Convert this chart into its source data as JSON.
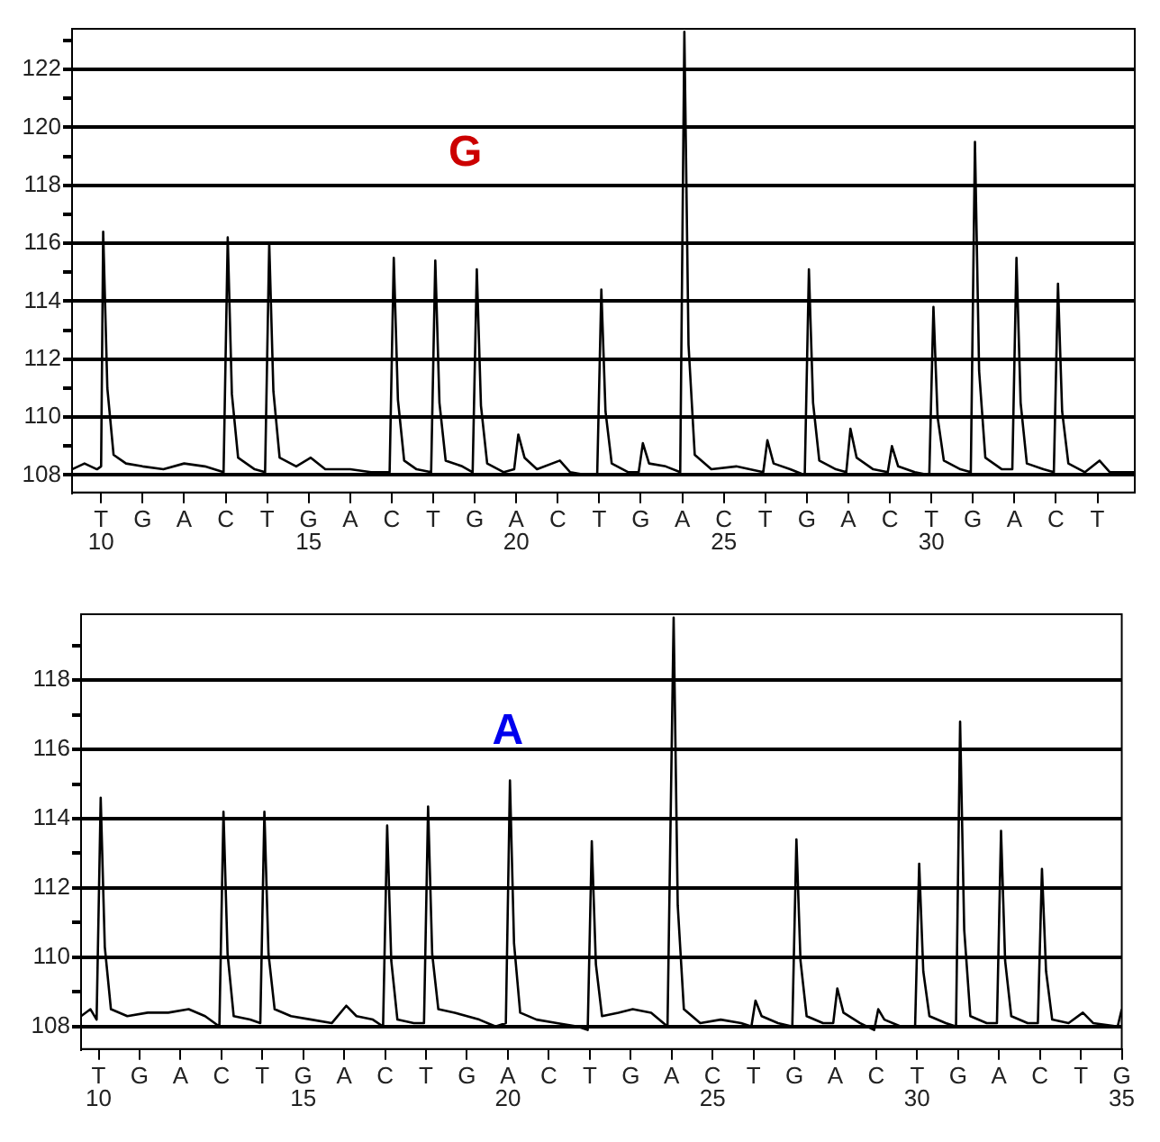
{
  "chart_data": [
    {
      "type": "line",
      "grid": "y",
      "marker": "none",
      "annotations": [
        "G",
        "T",
        "G",
        "A",
        "C",
        "T",
        "G",
        "A",
        "C",
        "T",
        "G",
        "A",
        "C",
        "T",
        "G",
        "A",
        "C",
        "T",
        "G",
        "A",
        "C",
        "T",
        "G",
        "A",
        "C",
        "T"
      ],
      "xlim": [
        9.3,
        34.9
      ],
      "xticks": [
        10,
        {
          "value": 11,
          "label": null
        },
        {
          "value": 12,
          "label": null
        },
        {
          "value": 13,
          "label": null
        },
        {
          "value": 14,
          "label": null
        },
        15,
        {
          "value": 16,
          "label": null
        },
        {
          "value": 17,
          "label": null
        },
        {
          "value": 18,
          "label": null
        },
        {
          "value": 19,
          "label": null
        },
        20,
        {
          "value": 21,
          "label": null
        },
        {
          "value": 22,
          "label": null
        },
        {
          "value": 23,
          "label": null
        },
        {
          "value": 24,
          "label": null
        },
        25,
        {
          "value": 26,
          "label": null
        },
        {
          "value": 27,
          "label": null
        },
        {
          "value": 28,
          "label": null
        },
        {
          "value": 29,
          "label": null
        },
        30,
        {
          "value": 31,
          "label": null
        },
        {
          "value": 32,
          "label": null
        },
        {
          "value": 33,
          "label": null
        },
        {
          "value": 34,
          "label": null
        }
      ],
      "ylim": [
        107.4,
        123.4
      ],
      "yticks": [
        108,
        {
          "value": 109,
          "label": null
        },
        110,
        {
          "value": 111,
          "label": null
        },
        112,
        {
          "value": 113,
          "label": null
        },
        114,
        {
          "value": 115,
          "label": null
        },
        116,
        {
          "value": 117,
          "label": null
        },
        118,
        {
          "value": 119,
          "label": null
        },
        120,
        {
          "value": 121,
          "label": null
        },
        122,
        {
          "value": 123,
          "label": null
        }
      ],
      "series": [
        {
          "color": "#000000",
          "x": [
            9.3,
            9.6,
            9.9,
            10.0,
            10.05,
            10.15,
            10.3,
            10.6,
            11.0,
            11.5,
            12.0,
            12.5,
            12.95,
            13.05,
            13.15,
            13.3,
            13.7,
            13.95,
            14.05,
            14.15,
            14.3,
            14.7,
            15.05,
            15.4,
            16.0,
            16.5,
            16.95,
            17.05,
            17.15,
            17.3,
            17.6,
            17.95,
            18.05,
            18.15,
            18.3,
            18.7,
            18.95,
            19.05,
            19.15,
            19.3,
            19.7,
            19.95,
            20.05,
            20.2,
            20.5,
            21.05,
            21.3,
            21.7,
            21.95,
            22.05,
            22.15,
            22.3,
            22.7,
            22.95,
            23.05,
            23.2,
            23.6,
            23.95,
            24.05,
            24.15,
            24.3,
            24.7,
            25.3,
            25.95,
            26.05,
            26.2,
            26.6,
            26.95,
            27.05,
            27.15,
            27.3,
            27.7,
            27.95,
            28.05,
            28.2,
            28.6,
            28.95,
            29.05,
            29.2,
            29.6,
            29.95,
            30.05,
            30.15,
            30.3,
            30.7,
            30.95,
            31.05,
            31.15,
            31.3,
            31.7,
            31.95,
            32.05,
            32.15,
            32.3,
            32.7,
            32.95,
            33.05,
            33.15,
            33.3,
            33.7,
            34.05,
            34.3,
            34.9
          ],
          "values": [
            108.2,
            108.4,
            108.2,
            108.3,
            116.4,
            111.0,
            108.7,
            108.4,
            108.3,
            108.2,
            108.4,
            108.3,
            108.1,
            116.2,
            110.8,
            108.6,
            108.2,
            108.1,
            116.0,
            110.9,
            108.6,
            108.3,
            108.6,
            108.2,
            108.2,
            108.1,
            108.1,
            115.5,
            110.6,
            108.5,
            108.2,
            108.1,
            115.4,
            110.5,
            108.5,
            108.3,
            108.1,
            115.1,
            110.4,
            108.4,
            108.1,
            108.2,
            109.4,
            108.6,
            108.2,
            108.5,
            108.1,
            108.0,
            108.0,
            114.4,
            110.2,
            108.4,
            108.1,
            108.1,
            109.1,
            108.4,
            108.3,
            108.1,
            123.3,
            112.5,
            108.7,
            108.2,
            108.3,
            108.1,
            109.2,
            108.4,
            108.2,
            108.0,
            115.1,
            110.5,
            108.5,
            108.2,
            108.1,
            109.6,
            108.6,
            108.2,
            108.1,
            109.0,
            108.3,
            108.1,
            108.0,
            113.8,
            110.0,
            108.5,
            108.2,
            108.1,
            119.5,
            111.6,
            108.6,
            108.2,
            108.2,
            115.5,
            110.5,
            108.4,
            108.2,
            108.1,
            114.6,
            110.2,
            108.4,
            108.1,
            108.5,
            108.1,
            108.1
          ]
        }
      ]
    },
    {
      "type": "line",
      "grid": "y",
      "marker": "none",
      "annotations": [
        "A",
        "T",
        "G",
        "A",
        "C",
        "T",
        "G",
        "A",
        "C",
        "T",
        "G",
        "A",
        "C",
        "T",
        "G",
        "A",
        "C",
        "T",
        "G",
        "A",
        "C",
        "T",
        "G",
        "A",
        "C",
        "T",
        "G"
      ],
      "xlim": [
        9.57,
        35
      ],
      "xticks": [
        10,
        {
          "value": 11,
          "label": null
        },
        {
          "value": 12,
          "label": null
        },
        {
          "value": 13,
          "label": null
        },
        {
          "value": 14,
          "label": null
        },
        15,
        {
          "value": 16,
          "label": null
        },
        {
          "value": 17,
          "label": null
        },
        {
          "value": 18,
          "label": null
        },
        {
          "value": 19,
          "label": null
        },
        20,
        {
          "value": 21,
          "label": null
        },
        {
          "value": 22,
          "label": null
        },
        {
          "value": 23,
          "label": null
        },
        {
          "value": 24,
          "label": null
        },
        25,
        {
          "value": 26,
          "label": null
        },
        {
          "value": 27,
          "label": null
        },
        {
          "value": 28,
          "label": null
        },
        {
          "value": 29,
          "label": null
        },
        30,
        {
          "value": 31,
          "label": null
        },
        {
          "value": 32,
          "label": null
        },
        {
          "value": 33,
          "label": null
        },
        {
          "value": 34,
          "label": null
        },
        35
      ],
      "ylim": [
        107.35,
        119.9
      ],
      "yticks": [
        108,
        {
          "value": 109,
          "label": null
        },
        110,
        {
          "value": 111,
          "label": null
        },
        112,
        {
          "value": 113,
          "label": null
        },
        114,
        {
          "value": 115,
          "label": null
        },
        116,
        {
          "value": 117,
          "label": null
        },
        118,
        {
          "value": 119,
          "label": null
        }
      ],
      "series": [
        {
          "color": "#000000",
          "x": [
            9.57,
            9.8,
            9.95,
            10.05,
            10.15,
            10.3,
            10.7,
            11.2,
            11.7,
            12.2,
            12.6,
            12.95,
            13.05,
            13.15,
            13.3,
            13.7,
            13.95,
            14.05,
            14.15,
            14.3,
            14.7,
            15.2,
            15.7,
            16.05,
            16.3,
            16.7,
            16.95,
            17.05,
            17.15,
            17.3,
            17.7,
            17.95,
            18.05,
            18.15,
            18.3,
            18.7,
            19.3,
            19.7,
            19.95,
            20.05,
            20.15,
            20.3,
            20.7,
            21.2,
            21.7,
            21.95,
            22.05,
            22.15,
            22.3,
            22.7,
            23.05,
            23.5,
            23.9,
            24.05,
            24.15,
            24.3,
            24.7,
            25.2,
            25.7,
            25.95,
            26.05,
            26.2,
            26.6,
            26.95,
            27.05,
            27.15,
            27.3,
            27.7,
            27.95,
            28.05,
            28.2,
            28.6,
            28.95,
            29.05,
            29.2,
            29.6,
            29.95,
            30.05,
            30.15,
            30.3,
            30.7,
            30.95,
            31.05,
            31.15,
            31.3,
            31.7,
            31.95,
            32.05,
            32.15,
            32.3,
            32.7,
            32.95,
            33.05,
            33.15,
            33.3,
            33.7,
            34.05,
            34.3,
            34.9,
            35.0
          ],
          "values": [
            108.3,
            108.5,
            108.2,
            114.6,
            110.3,
            108.5,
            108.3,
            108.4,
            108.4,
            108.5,
            108.3,
            108.0,
            114.2,
            110.1,
            108.3,
            108.2,
            108.1,
            114.2,
            110.1,
            108.5,
            108.3,
            108.2,
            108.1,
            108.6,
            108.3,
            108.2,
            108.0,
            113.8,
            109.9,
            108.2,
            108.1,
            108.1,
            114.35,
            110.1,
            108.5,
            108.4,
            108.2,
            108.0,
            108.1,
            115.1,
            110.4,
            108.4,
            108.2,
            108.1,
            108.0,
            107.9,
            113.35,
            109.8,
            108.3,
            108.4,
            108.5,
            108.4,
            108.0,
            119.8,
            111.5,
            108.5,
            108.1,
            108.2,
            108.1,
            108.0,
            108.75,
            108.3,
            108.1,
            108.0,
            113.4,
            109.9,
            108.3,
            108.1,
            108.1,
            109.1,
            108.4,
            108.1,
            107.9,
            108.5,
            108.2,
            108.0,
            108.0,
            112.7,
            109.6,
            108.3,
            108.1,
            108.0,
            116.8,
            110.8,
            108.3,
            108.1,
            108.1,
            113.65,
            109.9,
            108.3,
            108.1,
            108.1,
            112.55,
            109.6,
            108.2,
            108.1,
            108.4,
            108.1,
            108.0,
            108.5
          ]
        }
      ]
    }
  ]
}
